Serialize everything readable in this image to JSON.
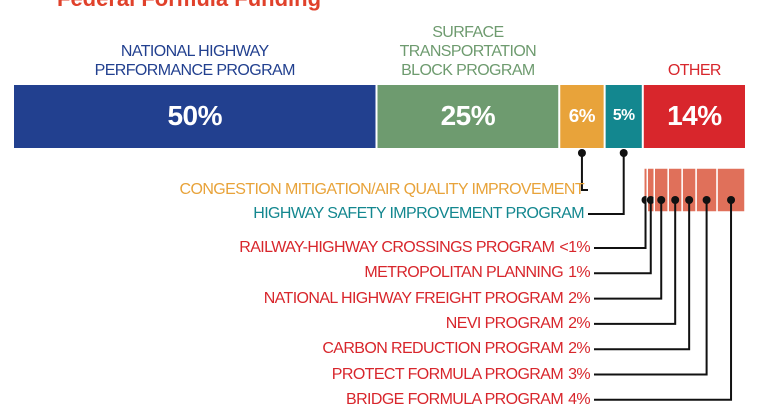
{
  "chart_data": {
    "type": "stacked-bar",
    "title": "Federal Formula Funding",
    "categories": [
      "NATIONAL HIGHWAY PERFORMANCE PROGRAM",
      "SURFACE TRANSPORTATION BLOCK PROGRAM",
      "CONGESTION MITIGATION/AIR QUALITY IMPROVEMENT",
      "HIGHWAY SAFETY IMPROVEMENT PROGRAM",
      "OTHER"
    ],
    "values": [
      50,
      25,
      6,
      5,
      14
    ],
    "value_labels": [
      "50%",
      "25%",
      "6%",
      "5%",
      "14%"
    ],
    "colors": [
      "#22408f",
      "#6e9b6f",
      "#e8a33a",
      "#13878f",
      "#d8262c"
    ],
    "breakdown": {
      "categories": [
        "RAILWAY-HIGHWAY CROSSINGS PROGRAM",
        "METROPOLITAN PLANNING",
        "NATIONAL HIGHWAY FREIGHT PROGRAM",
        "NEVI PROGRAM",
        "CARBON REDUCTION PROGRAM",
        "PROTECT FORMULA PROGRAM",
        "BRIDGE FORMULA PROGRAM"
      ],
      "values": [
        0.5,
        1,
        2,
        2,
        2,
        3,
        4
      ],
      "value_labels": [
        "<1%",
        "1%",
        "2%",
        "2%",
        "2%",
        "3%",
        "4%"
      ],
      "color": "#e0705a",
      "label_color": "#d8262c"
    }
  }
}
